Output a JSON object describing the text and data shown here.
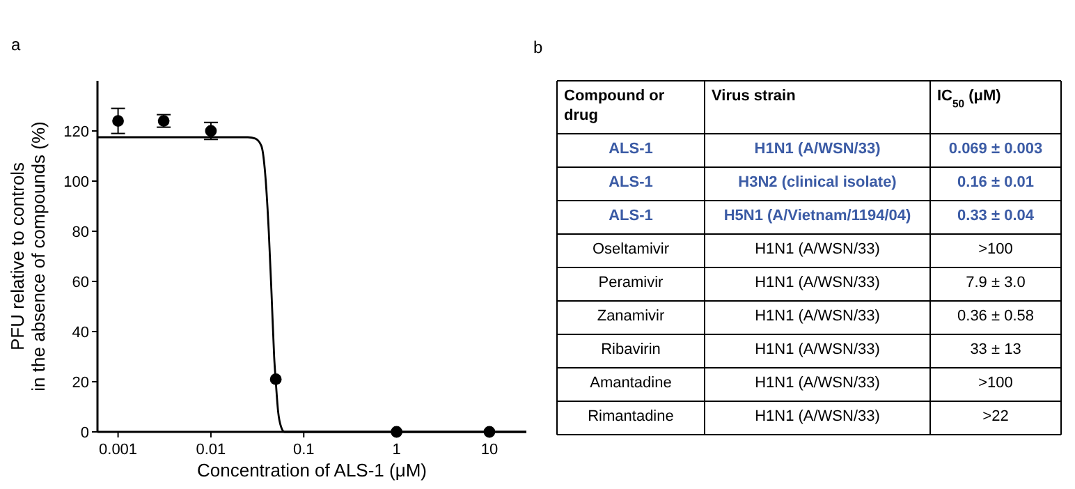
{
  "chart_data": [
    {
      "type": "scatter",
      "title": "a",
      "xlabel": "Concentration of ALS-1 (μM)",
      "ylabel": "PFU relative to controls\nin the absence of compounds (%)",
      "log": "x",
      "xlim": [
        0.0006,
        25
      ],
      "xticks": [
        0.001,
        0.01,
        0.1,
        1,
        10
      ],
      "ylim": [
        0,
        140
      ],
      "yticks": [
        0,
        20,
        40,
        60,
        80,
        100,
        120
      ],
      "grid": false,
      "series": [
        {
          "type": "scatter",
          "marker": "circle",
          "color": "#000000",
          "x": [
            0.001,
            0.0031,
            0.01,
            0.05,
            1,
            10
          ],
          "values": [
            124,
            124,
            120,
            21,
            0,
            0
          ],
          "errors": [
            5,
            2.5,
            3.4,
            null,
            null,
            null
          ]
        },
        {
          "type": "line",
          "marker": "none",
          "color": "#000000",
          "x": [
            0.0006,
            0.025,
            0.03,
            0.035,
            0.038,
            0.042,
            0.045,
            0.048,
            0.05,
            0.053,
            0.057,
            0.062,
            25
          ],
          "values": [
            117.5,
            117.5,
            117,
            114,
            105,
            80,
            55,
            30,
            20,
            8,
            2,
            0,
            0
          ]
        }
      ]
    },
    {
      "type": "other",
      "title": "b",
      "annotations": [
        "Compound or drug",
        "Virus strain",
        "IC$_{50}$ (μM)",
        "ALS-1",
        "H1N1  (A/WSN/33)",
        "0.069 ± 0.003",
        "ALS-1",
        "H3N2 (clinical isolate)",
        "0.16 ± 0.01",
        "ALS-1",
        "H5N1 (A/Vietnam/1194/04)",
        "0.33 ± 0.04",
        "Oseltamivir",
        "H1N1  (A/WSN/33)",
        ">100",
        "Peramivir",
        "H1N1 (A/WSN/33)",
        "7.9 ± 3.0",
        "Zanamivir",
        "H1N1 (A/WSN/33)",
        "0.36 ± 0.58",
        "Ribavirin",
        "H1N1 (A/WSN/33)",
        "33 ± 13",
        "Amantadine",
        "H1N1 (A/WSN/33)",
        ">100",
        "Rimantadine",
        "H1N1 (A/WSN/33)",
        ">22"
      ],
      "colors": [
        "#000000",
        "#3b5ba5",
        "#3b5ba5",
        "#3b5ba5",
        "#000000",
        "#000000",
        "#000000",
        "#000000",
        "#000000",
        "#000000"
      ]
    }
  ]
}
